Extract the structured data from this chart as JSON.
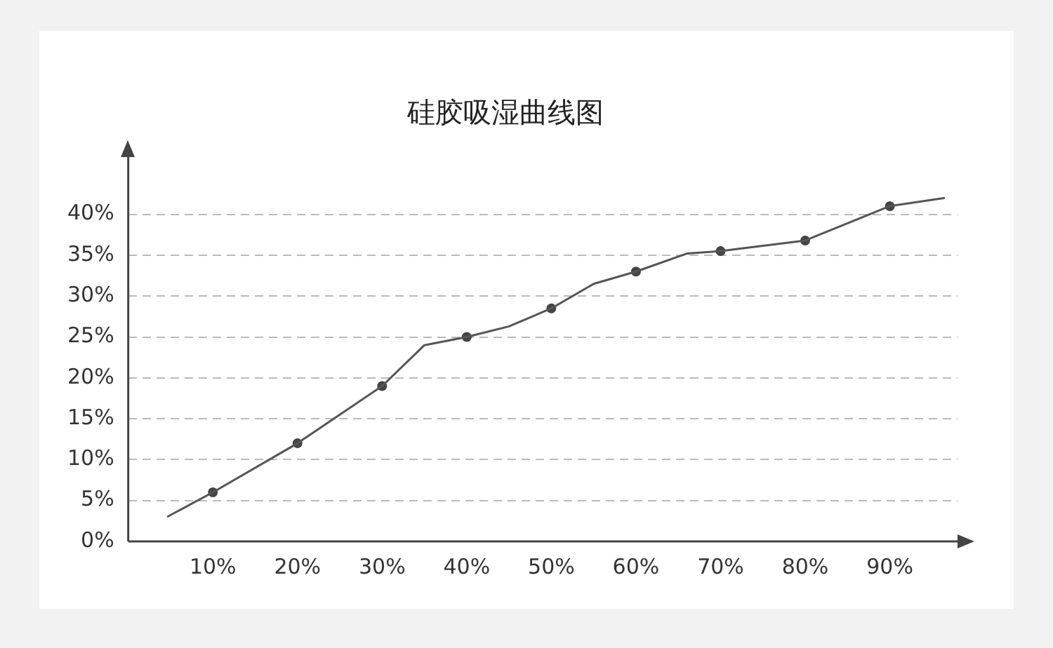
{
  "chart_data": {
    "type": "line",
    "title": "硅胶吸湿曲线图",
    "xlim": [
      0,
      98
    ],
    "xticks": [
      {
        "value": 10,
        "label": "10%"
      },
      {
        "value": 20,
        "label": "20%"
      },
      {
        "value": 30,
        "label": "30%"
      },
      {
        "value": 40,
        "label": "40%"
      },
      {
        "value": 50,
        "label": "50%"
      },
      {
        "value": 60,
        "label": "60%"
      },
      {
        "value": 70,
        "label": "70%"
      },
      {
        "value": 80,
        "label": "80%"
      },
      {
        "value": 90,
        "label": "90%"
      }
    ],
    "ylim": [
      0,
      47
    ],
    "yticks": [
      {
        "value": 0,
        "label": "0%"
      },
      {
        "value": 5,
        "label": "5%"
      },
      {
        "value": 10,
        "label": "10%"
      },
      {
        "value": 15,
        "label": "15%"
      },
      {
        "value": 20,
        "label": "20%"
      },
      {
        "value": 25,
        "label": "25%"
      },
      {
        "value": 30,
        "label": "30%"
      },
      {
        "value": 35,
        "label": "35%"
      },
      {
        "value": 40,
        "label": "40%"
      }
    ],
    "grid": "y",
    "legend": false,
    "line_style": "solid",
    "series": [
      {
        "type": "line",
        "color": "#555555",
        "marker": "none",
        "x": [
          4.6,
          10,
          20,
          25,
          30,
          35,
          40,
          45,
          50,
          55,
          60,
          66,
          70,
          80,
          90,
          96.5
        ],
        "values": [
          3,
          6,
          12,
          15.5,
          19,
          24,
          25,
          26.3,
          28.5,
          31.5,
          33,
          35.2,
          35.5,
          36.8,
          41,
          42
        ]
      },
      {
        "type": "scatter",
        "color": "#444444",
        "marker": "circle",
        "x": [
          10,
          20,
          30,
          40,
          50,
          60,
          70,
          80,
          90
        ],
        "values": [
          6,
          12,
          19,
          25,
          28.5,
          33,
          35.5,
          36.8,
          41
        ]
      }
    ]
  }
}
